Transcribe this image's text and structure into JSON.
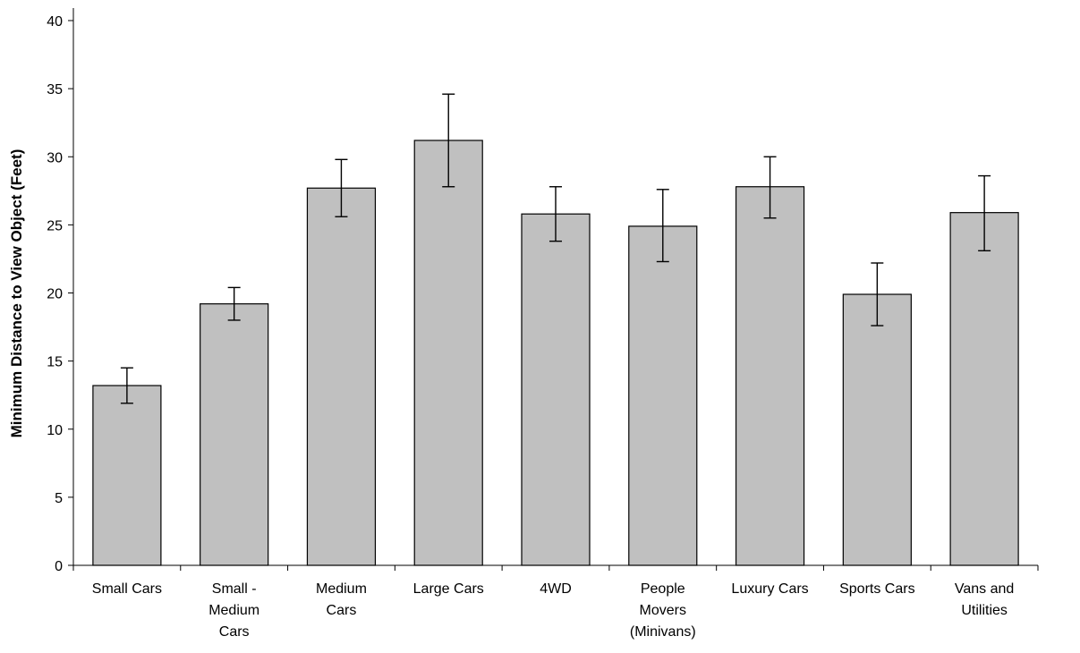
{
  "chart_data": {
    "type": "bar",
    "title": "",
    "xlabel": "",
    "ylabel": "Minimum Distance to View Object (Feet)",
    "ylim": [
      0,
      40
    ],
    "yticks": [
      0,
      5,
      10,
      15,
      20,
      25,
      30,
      35,
      40
    ],
    "grid": false,
    "categories": [
      [
        "Small Cars"
      ],
      [
        "Small -",
        "Medium",
        "Cars"
      ],
      [
        "Medium",
        "Cars"
      ],
      [
        "Large Cars"
      ],
      [
        "4WD"
      ],
      [
        "People",
        "Movers",
        "(Minivans)"
      ],
      [
        "Luxury Cars"
      ],
      [
        "Sports Cars"
      ],
      [
        "Vans and",
        "Utilities"
      ]
    ],
    "values": [
      13.2,
      19.2,
      27.7,
      31.2,
      25.8,
      24.9,
      27.8,
      19.9,
      25.9
    ],
    "error_low": [
      11.9,
      18.0,
      25.6,
      27.8,
      23.8,
      22.3,
      25.5,
      17.6,
      23.1
    ],
    "error_high": [
      14.5,
      20.4,
      29.8,
      34.6,
      27.8,
      27.6,
      30.0,
      22.2,
      28.6
    ],
    "colors": {
      "bar_fill": "#c0c0c0",
      "bar_stroke": "#000000",
      "axis": "#000000"
    }
  }
}
